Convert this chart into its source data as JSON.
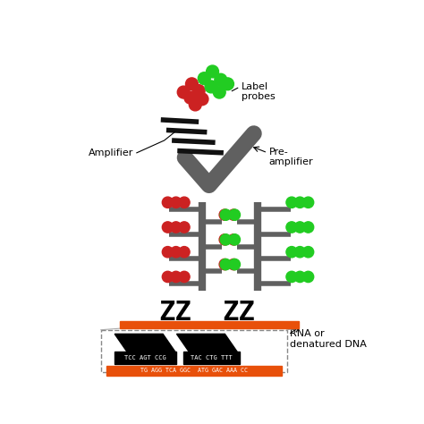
{
  "bg_color": "#ffffff",
  "label_probes_text": "Label\nprobes",
  "amplifier_text": "Amplifier",
  "pre_amplifier_text": "Pre-\namplifier",
  "rna_text": "RNA or\ndenatured DNA",
  "orange_color": "#E8500A",
  "gray_color": "#606060",
  "red_color": "#cc2222",
  "green_color": "#22cc22",
  "dna_seq1a": "TCC AGT CCG",
  "dna_seq1b": "TAC CTG TTT",
  "dna_seq2": "TG AGG TCA GGC  ATG GAC AAA CC"
}
